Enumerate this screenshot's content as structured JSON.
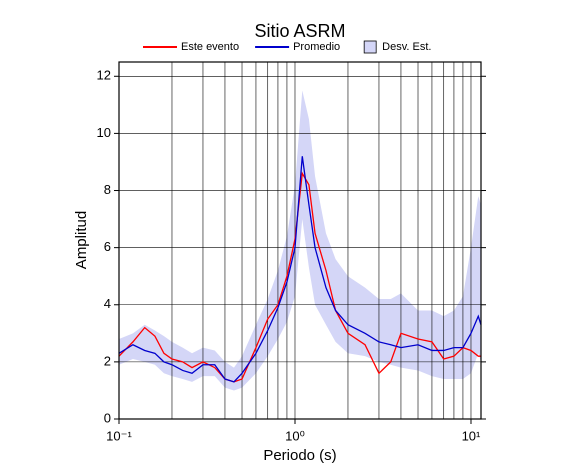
{
  "chart_data": {
    "type": "line",
    "title": "Sitio ASRM",
    "xlabel": "Periodo (s)",
    "ylabel": "Amplitud",
    "log_x": true,
    "grid": true,
    "xlim": [
      0.1,
      11.4
    ],
    "ylim": [
      0,
      12.5
    ],
    "xticks": [
      {
        "value": 0.1,
        "label": "10⁻¹"
      },
      {
        "value": 1,
        "label": "10⁰"
      },
      {
        "value": 10,
        "label": "10¹"
      }
    ],
    "yticks": [
      0,
      2,
      4,
      6,
      8,
      10,
      12
    ],
    "x": [
      0.1,
      0.12,
      0.14,
      0.16,
      0.18,
      0.2,
      0.23,
      0.26,
      0.3,
      0.35,
      0.4,
      0.45,
      0.5,
      0.6,
      0.7,
      0.8,
      0.9,
      1.0,
      1.1,
      1.2,
      1.3,
      1.5,
      1.7,
      2,
      2.5,
      3,
      3.5,
      4,
      5,
      6,
      7,
      8,
      9,
      10,
      11,
      11.4
    ],
    "band": {
      "name": "Desv. Est.",
      "color": "#d4d6f7",
      "upper": [
        2.8,
        3.0,
        3.3,
        3.1,
        2.9,
        2.7,
        2.5,
        2.3,
        2.5,
        2.4,
        2.0,
        1.8,
        2.2,
        3.3,
        4.2,
        5.2,
        6.4,
        8.2,
        11.5,
        10.5,
        8.5,
        6.5,
        5.6,
        5.0,
        4.6,
        4.2,
        4.2,
        4.4,
        3.8,
        3.8,
        3.6,
        3.8,
        4.3,
        6.0,
        7.8,
        7.5
      ],
      "lower": [
        1.9,
        2.1,
        2.0,
        1.9,
        1.6,
        1.5,
        1.4,
        1.3,
        1.5,
        1.5,
        1.1,
        1.0,
        1.1,
        1.6,
        2.2,
        2.8,
        3.4,
        4.3,
        7.0,
        5.3,
        4.0,
        3.3,
        2.7,
        2.3,
        2.2,
        2.0,
        1.9,
        1.8,
        1.7,
        1.5,
        1.4,
        1.4,
        1.4,
        1.6,
        2.3,
        2.0
      ]
    },
    "series": [
      {
        "name": "Este evento",
        "color": "#ff0000",
        "values": [
          2.2,
          2.7,
          3.2,
          2.9,
          2.3,
          2.1,
          2.0,
          1.8,
          2.0,
          1.8,
          1.4,
          1.3,
          1.4,
          2.5,
          3.5,
          4.0,
          5.0,
          6.3,
          8.6,
          8.2,
          6.5,
          5.2,
          3.8,
          3.0,
          2.6,
          1.6,
          2.0,
          3.0,
          2.8,
          2.7,
          2.1,
          2.2,
          2.5,
          2.4,
          2.2,
          2.2
        ]
      },
      {
        "name": "Promedio",
        "color": "#0000cc",
        "values": [
          2.3,
          2.6,
          2.4,
          2.3,
          2.0,
          1.9,
          1.7,
          1.6,
          1.9,
          1.9,
          1.4,
          1.3,
          1.6,
          2.3,
          3.1,
          3.9,
          4.8,
          6.0,
          9.2,
          7.5,
          6.0,
          4.6,
          3.8,
          3.3,
          3.0,
          2.7,
          2.6,
          2.5,
          2.6,
          2.4,
          2.4,
          2.5,
          2.5,
          3.0,
          3.6,
          3.3
        ]
      }
    ]
  }
}
